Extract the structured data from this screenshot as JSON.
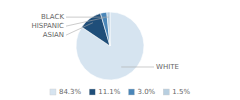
{
  "chart_data": {
    "type": "pie",
    "categories": [
      "WHITE",
      "ASIAN",
      "HISPANIC",
      "BLACK"
    ],
    "values": [
      84.3,
      11.1,
      3.0,
      1.5
    ],
    "value_labels": [
      "84.3%",
      "11.1%",
      "3.0%",
      "1.5%"
    ],
    "colors": [
      "#d6e4f0",
      "#1f4e79",
      "#4a86b8",
      "#b8cfe0"
    ],
    "legend": "bottom"
  }
}
